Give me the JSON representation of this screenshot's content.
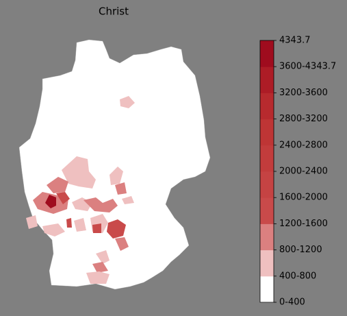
{
  "map": {
    "title": "Christ",
    "colorbar": {
      "ticks": [
        "0-400",
        "400-800",
        "800-1200",
        "1200-1600",
        "1600-2000",
        "2000-2400",
        "2400-2800",
        "2800-3200",
        "3200-3600",
        "3600-4343.7",
        "4343.7"
      ],
      "colors": [
        "#ffffff",
        "#efc0c0",
        "#db8080",
        "#c94a4a",
        "#c54343",
        "#c23c3c",
        "#be3535",
        "#b72a2e",
        "#ad1c26",
        "#9f0c1e"
      ]
    }
  }
}
